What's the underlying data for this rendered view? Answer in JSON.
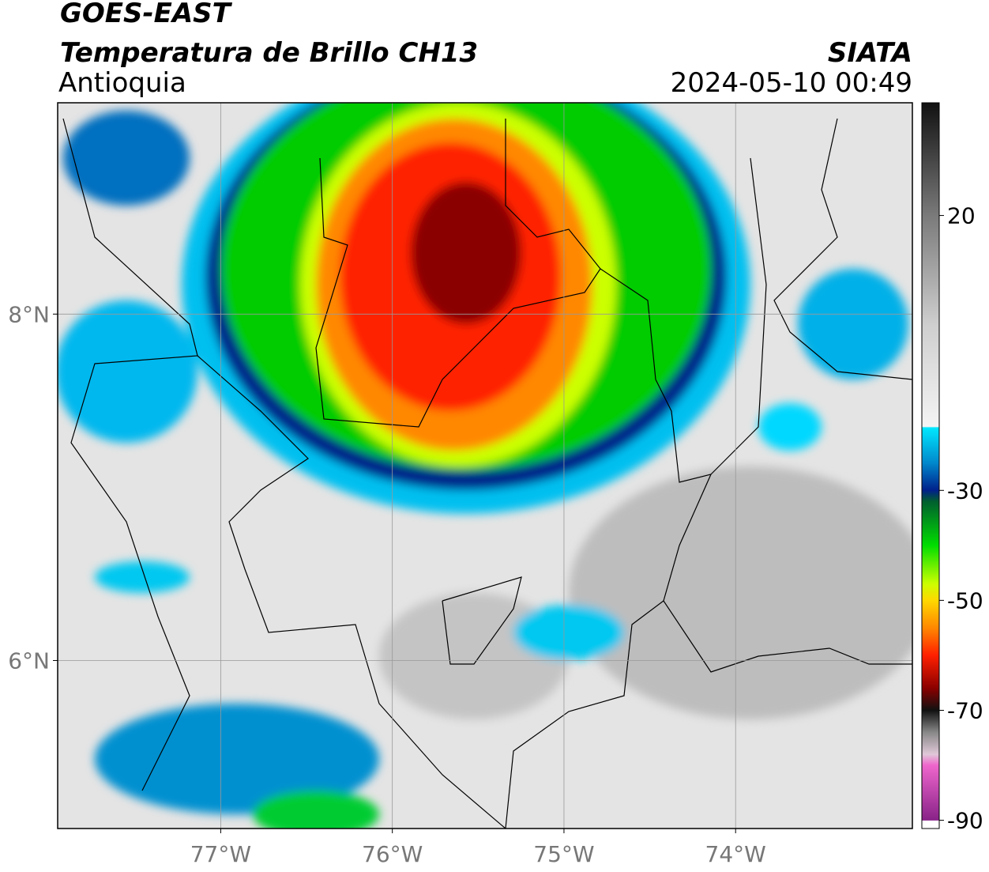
{
  "header": {
    "title": "GOES-EAST",
    "subtitle": "Temperatura de Brillo CH13",
    "region": "Antioquia",
    "source": "SIATA",
    "datetime": "2024-05-10 00:49"
  },
  "map": {
    "type": "map",
    "xlim": [
      -77.95,
      -72.97
    ],
    "ylim": [
      5.03,
      9.22
    ],
    "xticks": [
      {
        "value": -77,
        "label": "77°W"
      },
      {
        "value": -76,
        "label": "76°W"
      },
      {
        "value": -75,
        "label": "75°W"
      },
      {
        "value": -74,
        "label": "74°W"
      }
    ],
    "yticks": [
      {
        "value": 6,
        "label": "6°N"
      },
      {
        "value": 8,
        "label": "8°N"
      }
    ],
    "grid": true
  },
  "colorbar": {
    "clim": [
      -91.5,
      40.5
    ],
    "ticks": [
      20,
      -30,
      -50,
      -70,
      -90
    ],
    "colormap": [
      [
        40.5,
        "#111111"
      ],
      [
        20,
        "#7a7a7a"
      ],
      [
        0,
        "#cfcfcf"
      ],
      [
        -18.4,
        "#f4f4f4"
      ],
      [
        -18.6,
        "#00e8ff"
      ],
      [
        -25,
        "#0088cc"
      ],
      [
        -30,
        "#00208a"
      ],
      [
        -32,
        "#005f2e"
      ],
      [
        -40,
        "#00dd00"
      ],
      [
        -47,
        "#ccff00"
      ],
      [
        -50,
        "#ffd800"
      ],
      [
        -55,
        "#ff8800"
      ],
      [
        -60,
        "#ff2000"
      ],
      [
        -66,
        "#8a0000"
      ],
      [
        -70,
        "#111111"
      ],
      [
        -74,
        "#888888"
      ],
      [
        -78,
        "#e0c8d8"
      ],
      [
        -80,
        "#ee66cc"
      ],
      [
        -90,
        "#882288"
      ],
      [
        -90.1,
        "#ffffff"
      ]
    ]
  }
}
